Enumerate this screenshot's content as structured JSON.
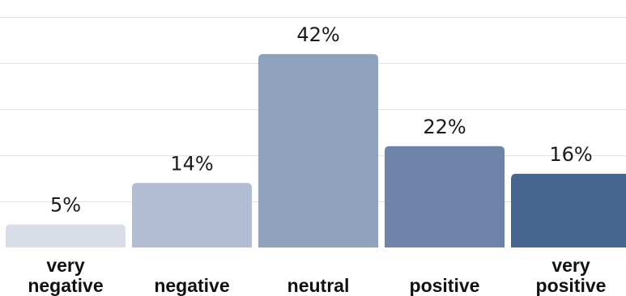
{
  "chart_data": {
    "type": "bar",
    "categories": [
      "very negative",
      "negative",
      "neutral",
      "positive",
      "very positive"
    ],
    "category_lines": [
      [
        "very",
        "negative"
      ],
      [
        "negative"
      ],
      [
        "neutral"
      ],
      [
        "positive"
      ],
      [
        "very",
        "positive"
      ]
    ],
    "values": [
      5,
      14,
      42,
      22,
      16
    ],
    "data_labels": [
      "5%",
      "14%",
      "42%",
      "22%",
      "16%"
    ],
    "value_unit": "%",
    "ylim": [
      0,
      52
    ],
    "grid": true,
    "legend": "none",
    "colors": [
      "#d9dde8",
      "#b2bcd2",
      "#8fa2bd",
      "#6d84a8",
      "#47638f"
    ],
    "title": "",
    "xlabel": "",
    "ylabel": ""
  }
}
